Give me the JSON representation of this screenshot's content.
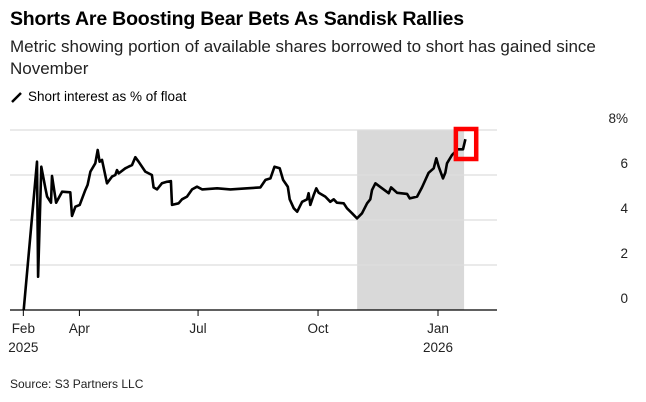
{
  "chart_data": {
    "type": "line",
    "title": "Shorts Are Boosting Bear Bets As Sandisk Rallies",
    "subtitle": "Metric showing portion of available shares borrowed to short has gained since November",
    "legend": [
      {
        "label": "Short interest as % of float",
        "color": "#000000"
      }
    ],
    "source": "Source: S3 Partners LLC",
    "x_unit": "day of 2025 (Jan 1 = 0)",
    "ylim": [
      0,
      8
    ],
    "y_ticks": [
      {
        "v": 0,
        "label": "0"
      },
      {
        "v": 2,
        "label": "2"
      },
      {
        "v": 4,
        "label": "4"
      },
      {
        "v": 6,
        "label": "6"
      },
      {
        "v": 8,
        "label": "8%"
      }
    ],
    "x_ticks": [
      {
        "d": 47,
        "label": "Feb",
        "sub": "2025"
      },
      {
        "d": 90,
        "label": "Apr",
        "sub": ""
      },
      {
        "d": 181,
        "label": "Jul",
        "sub": ""
      },
      {
        "d": 273,
        "label": "Oct",
        "sub": ""
      },
      {
        "d": 365,
        "label": "Jan",
        "sub": "2026"
      }
    ],
    "shaded_region": [
      303,
      385
    ],
    "highlight_box": [
      381,
      392
    ],
    "highlight_color": "#ff0000",
    "shade_color": "#d9d9d9",
    "series": [
      {
        "name": "Short interest as % of float",
        "points": [
          [
            47.3,
            0
          ],
          [
            57.5,
            6.59
          ],
          [
            58.3,
            1.48
          ],
          [
            60.8,
            6.37
          ],
          [
            63.9,
            5.41
          ],
          [
            65.2,
            5.04
          ],
          [
            68.2,
            4.77
          ],
          [
            69,
            5.96
          ],
          [
            72.1,
            4.77
          ],
          [
            76.7,
            5.26
          ],
          [
            83,
            5.23
          ],
          [
            84.3,
            4.18
          ],
          [
            86.9,
            4.59
          ],
          [
            90.2,
            4.67
          ],
          [
            94.5,
            5.33
          ],
          [
            96.3,
            5.56
          ],
          [
            98.4,
            6.15
          ],
          [
            102.2,
            6.52
          ],
          [
            104,
            7.11
          ],
          [
            105.5,
            6.59
          ],
          [
            107.3,
            6.67
          ],
          [
            111.2,
            5.63
          ],
          [
            115,
            5.93
          ],
          [
            117.5,
            6.0
          ],
          [
            118.8,
            6.22
          ],
          [
            120.1,
            6.07
          ],
          [
            125.2,
            6.3
          ],
          [
            130.3,
            6.44
          ],
          [
            132.9,
            6.79
          ],
          [
            135.4,
            6.59
          ],
          [
            140.5,
            6.15
          ],
          [
            145.6,
            6.0
          ],
          [
            146.9,
            5.45
          ],
          [
            149.5,
            5.36
          ],
          [
            153.3,
            5.63
          ],
          [
            157.1,
            5.7
          ],
          [
            160.2,
            5.73
          ],
          [
            161,
            4.67
          ],
          [
            166.1,
            4.74
          ],
          [
            168.7,
            4.92
          ],
          [
            172.5,
            5.04
          ],
          [
            176.4,
            5.36
          ],
          [
            180.2,
            5.48
          ],
          [
            184.1,
            5.36
          ],
          [
            195.6,
            5.41
          ],
          [
            205.8,
            5.36
          ],
          [
            218.6,
            5.41
          ],
          [
            228.8,
            5.45
          ],
          [
            232.7,
            5.78
          ],
          [
            236.5,
            5.85
          ],
          [
            239.6,
            6.37
          ],
          [
            243.6,
            6.3
          ],
          [
            246.2,
            5.78
          ],
          [
            249.8,
            5.48
          ],
          [
            251.3,
            4.92
          ],
          [
            254.4,
            4.52
          ],
          [
            257,
            4.37
          ],
          [
            260.8,
            4.81
          ],
          [
            264.6,
            4.92
          ],
          [
            265.8,
            5.19
          ],
          [
            267.1,
            4.67
          ],
          [
            269.7,
            5.11
          ],
          [
            271.7,
            5.41
          ],
          [
            273.5,
            5.21
          ],
          [
            278.6,
            5.04
          ],
          [
            282.4,
            4.81
          ],
          [
            285,
            4.92
          ],
          [
            287.5,
            4.77
          ],
          [
            292.7,
            4.74
          ],
          [
            295.2,
            4.52
          ],
          [
            299.1,
            4.3
          ],
          [
            302.9,
            4.07
          ],
          [
            306.7,
            4.3
          ],
          [
            310.6,
            4.74
          ],
          [
            313.1,
            4.92
          ],
          [
            314.4,
            5.33
          ],
          [
            317,
            5.63
          ],
          [
            322.1,
            5.41
          ],
          [
            327.2,
            5.19
          ],
          [
            329,
            5.45
          ],
          [
            333.6,
            5.21
          ],
          [
            341.3,
            5.16
          ],
          [
            343.4,
            4.96
          ],
          [
            349,
            5.04
          ],
          [
            352.7,
            5.45
          ],
          [
            355.3,
            5.78
          ],
          [
            357.8,
            6.1
          ],
          [
            361.7,
            6.3
          ],
          [
            363.7,
            6.74
          ],
          [
            365.5,
            6.37
          ],
          [
            368.8,
            5.85
          ],
          [
            370.6,
            6.1
          ],
          [
            371.9,
            6.52
          ],
          [
            375.7,
            6.89
          ],
          [
            380.1,
            7.14
          ],
          [
            384.2,
            7.14
          ],
          [
            386,
            7.59
          ]
        ]
      }
    ]
  }
}
